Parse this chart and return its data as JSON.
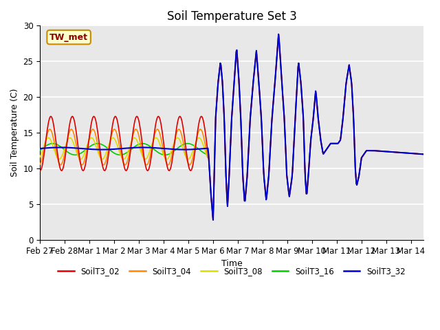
{
  "title": "Soil Temperature Set 3",
  "xlabel": "Time",
  "ylabel": "Soil Temperature (C)",
  "ylim": [
    0,
    30
  ],
  "xlim": [
    0,
    15.5
  ],
  "annotation_text": "TW_met",
  "annotation_color": "#8b0000",
  "annotation_bg": "#ffffcc",
  "annotation_border": "#cc8800",
  "series_colors": {
    "SoilT3_02": "#dd0000",
    "SoilT3_04": "#ff8800",
    "SoilT3_08": "#dddd00",
    "SoilT3_16": "#00cc00",
    "SoilT3_32": "#0000cc"
  },
  "xtick_labels": [
    "Feb 27",
    "Feb 28",
    "Mar 1",
    "Mar 2",
    "Mar 3",
    "Mar 4",
    "Mar 5",
    "Mar 6",
    "Mar 7",
    "Mar 8",
    "Mar 9",
    "Mar 10",
    "Mar 11",
    "Mar 12",
    "Mar 13",
    "Mar 14"
  ],
  "ytick_vals": [
    0,
    5,
    10,
    15,
    20,
    25,
    30
  ],
  "bg_color": "#e8e8e8",
  "grid_color": "#ffffff"
}
